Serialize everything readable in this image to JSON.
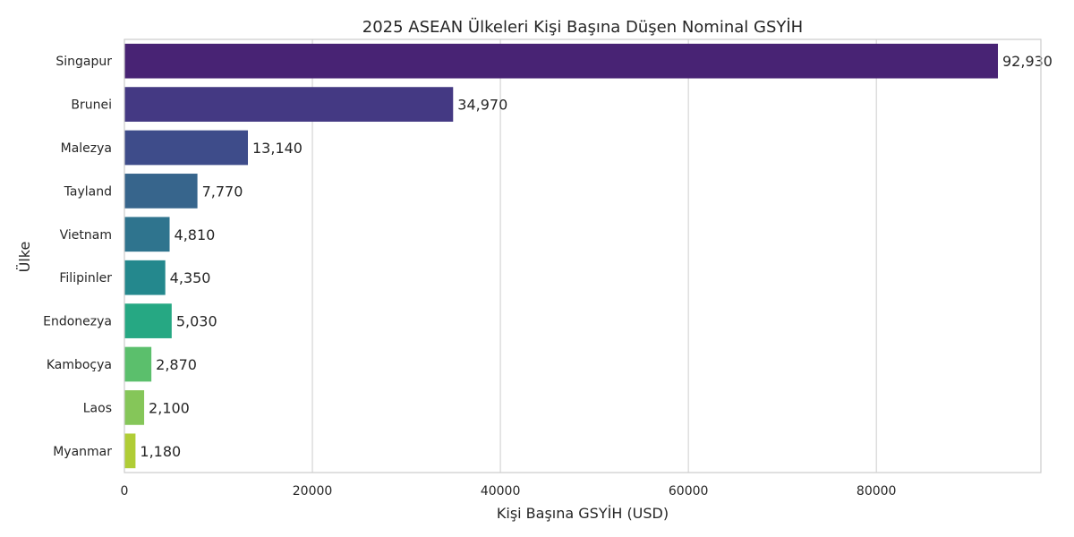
{
  "chart_data": {
    "type": "bar",
    "orientation": "horizontal",
    "title": "2025 ASEAN Ülkeleri Kişi Başına Düşen Nominal GSYİH",
    "xlabel": "Kişi Başına GSYİH (USD)",
    "ylabel": "Ülke",
    "categories": [
      "Singapur",
      "Brunei",
      "Malezya",
      "Tayland",
      "Vietnam",
      "Filipinler",
      "Endonezya",
      "Kamboçya",
      "Laos",
      "Myanmar"
    ],
    "values": [
      92930,
      34970,
      13140,
      7770,
      4810,
      4350,
      5030,
      2870,
      2100,
      1180
    ],
    "value_labels": [
      "92,930",
      "34,970",
      "13,140",
      "7,770",
      "4,810",
      "4,350",
      "5,030",
      "2,870",
      "2,100",
      "1,180"
    ],
    "colors": [
      "#482374",
      "#443983",
      "#3e4c8a",
      "#37658c",
      "#2f748e",
      "#24888d",
      "#26a883",
      "#5bbf6c",
      "#85c659",
      "#b0cd36"
    ],
    "xlim": [
      0,
      97500
    ],
    "xticks": [
      0,
      20000,
      40000,
      60000,
      80000
    ],
    "xtick_labels": [
      "0",
      "20000",
      "40000",
      "60000",
      "80000"
    ],
    "grid": true,
    "grid_axis": "x"
  }
}
